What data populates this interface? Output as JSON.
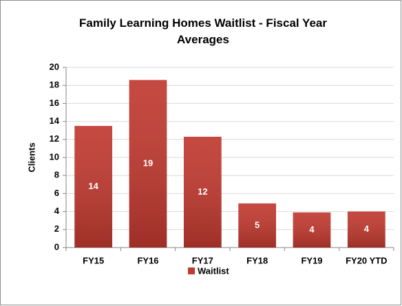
{
  "chart_data": {
    "type": "bar",
    "title": "Family Learning Homes Waitlist - Fiscal Year Averages",
    "y_label": "Clients",
    "categories": [
      "FY15",
      "FY16",
      "FY17",
      "FY18",
      "FY19",
      "FY20 YTD"
    ],
    "series": [
      {
        "name": "Waitlist",
        "color": "#c0392f",
        "values": [
          13.5,
          18.6,
          12.3,
          4.9,
          3.9,
          4.0
        ],
        "value_labels": [
          "14",
          "19",
          "12",
          "5",
          "4",
          "4"
        ]
      }
    ],
    "ylim": [
      0,
      20
    ],
    "yticks": [
      0,
      2,
      4,
      6,
      8,
      10,
      12,
      14,
      16,
      18,
      20
    ],
    "grid": true,
    "legend": "bottom"
  }
}
